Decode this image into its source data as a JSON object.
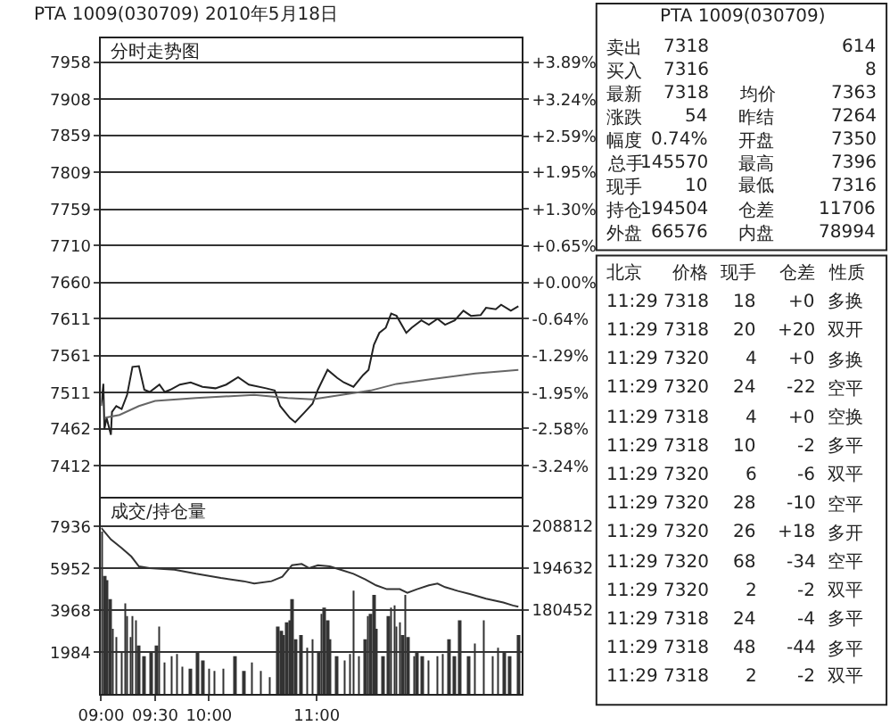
{
  "chart_data": [
    {
      "type": "line",
      "title": "PTA 1009(030709) 2010年5月18日",
      "subtitle": "分时走势图",
      "xlim": [
        9,
        12.9
      ],
      "ylim": [
        7370,
        7990
      ],
      "yticks": [
        7958,
        7908,
        7859,
        7809,
        7759,
        7710,
        7660,
        7611,
        7561,
        7511,
        7462,
        7412
      ],
      "y2lim": [
        -3.79,
        4.31
      ],
      "y2ticks": [
        {
          "value": 3.89,
          "label": "+3.89%"
        },
        {
          "value": 3.24,
          "label": "+3.24%"
        },
        {
          "value": 2.59,
          "label": "+2.59%"
        },
        {
          "value": 1.95,
          "label": "+1.95%"
        },
        {
          "value": 1.3,
          "label": "+1.30%"
        },
        {
          "value": 0.65,
          "label": "+0.65%"
        },
        {
          "value": 0.0,
          "label": "+0.00%"
        },
        {
          "value": -0.64,
          "label": "-0.64%"
        },
        {
          "value": -1.29,
          "label": "-1.29%"
        },
        {
          "value": -1.95,
          "label": "-1.95%"
        },
        {
          "value": -2.58,
          "label": "-2.58%"
        },
        {
          "value": -3.24,
          "label": "-3.24%"
        }
      ],
      "grid": "y",
      "tick_labels": "y",
      "series": [
        {
          "color": "#222222",
          "x": [
            9.0,
            9.02,
            9.03,
            9.05,
            9.09,
            9.1,
            9.14,
            9.19,
            9.24,
            9.29,
            9.35,
            9.4,
            9.45,
            9.54,
            9.59,
            9.64,
            9.73,
            9.83,
            9.94,
            10.06,
            10.16,
            10.27,
            10.37,
            10.53,
            10.61,
            10.66,
            10.75,
            10.8,
            10.89,
            10.96,
            11.01,
            11.1,
            11.19,
            11.25,
            11.34,
            11.43,
            11.48,
            11.53,
            11.58,
            11.64,
            11.69,
            11.74,
            11.83,
            11.88,
            11.97,
            12.04,
            12.12,
            12.19,
            12.28,
            12.36,
            12.43,
            12.52,
            12.57,
            12.66,
            12.71,
            12.8,
            12.87
          ],
          "values": [
            7493,
            7523,
            7462,
            7477,
            7454,
            7485,
            7493,
            7489,
            7508,
            7546,
            7547,
            7515,
            7512,
            7522,
            7512,
            7515,
            7522,
            7525,
            7519,
            7517,
            7522,
            7532,
            7522,
            7517,
            7514,
            7493,
            7477,
            7471,
            7485,
            7496,
            7515,
            7542,
            7531,
            7525,
            7519,
            7535,
            7542,
            7576,
            7592,
            7599,
            7618,
            7615,
            7592,
            7599,
            7609,
            7603,
            7611,
            7603,
            7609,
            7622,
            7615,
            7616,
            7626,
            7624,
            7630,
            7622,
            7628
          ]
        },
        {
          "color": "#666666",
          "x": [
            9.03,
            9.17,
            9.35,
            9.5,
            9.88,
            10.42,
            10.73,
            10.96,
            11.5,
            11.74,
            12.04,
            12.47,
            12.87
          ],
          "values": [
            7477,
            7481,
            7493,
            7500,
            7504,
            7508,
            7504,
            7502,
            7514,
            7523,
            7529,
            7537,
            7542
          ]
        }
      ]
    },
    {
      "type": "bar",
      "title": "成交/持仓量",
      "xlim": [
        9,
        12.9
      ],
      "xticks": [
        {
          "value": 9,
          "label": "09:00"
        },
        {
          "value": 9.5,
          "label": "09:30"
        },
        {
          "value": 10,
          "label": "10:00"
        },
        {
          "value": 11,
          "label": "11:00"
        }
      ],
      "ylim": [
        0,
        9270
      ],
      "yticks": [
        7936,
        5952,
        3968,
        1984
      ],
      "y2lim": [
        152092,
        218148
      ],
      "y2ticks": [
        208812,
        194632,
        180452
      ],
      "grid": "y",
      "series": [
        {
          "type": "bar",
          "color": "#333333",
          "x": [
            9.0,
            9.03,
            9.05,
            9.08,
            9.11,
            9.14,
            9.19,
            9.22,
            9.24,
            9.27,
            9.29,
            9.32,
            9.35,
            9.4,
            9.46,
            9.51,
            9.54,
            9.59,
            9.65,
            9.7,
            9.75,
            9.83,
            9.89,
            9.94,
            10.0,
            10.05,
            10.13,
            10.24,
            10.32,
            10.4,
            10.48,
            10.56,
            10.64,
            10.67,
            10.69,
            10.72,
            10.75,
            10.77,
            10.8,
            10.85,
            10.91,
            10.96,
            11.02,
            11.04,
            11.07,
            11.1,
            11.12,
            11.18,
            11.26,
            11.31,
            11.34,
            11.39,
            11.45,
            11.47,
            11.5,
            11.53,
            11.55,
            11.61,
            11.66,
            11.69,
            11.72,
            11.74,
            11.77,
            11.8,
            11.82,
            11.85,
            11.9,
            11.93,
            11.98,
            12.04,
            12.12,
            12.17,
            12.23,
            12.28,
            12.33,
            12.41,
            12.47,
            12.55,
            12.63,
            12.68,
            12.74,
            12.79,
            12.87
          ],
          "values": [
            7700,
            5600,
            5400,
            4500,
            3100,
            2700,
            2000,
            4300,
            3700,
            2700,
            3700,
            3500,
            2300,
            1800,
            2000,
            2300,
            3200,
            1500,
            1800,
            1900,
            1300,
            1200,
            2000,
            1600,
            1200,
            1100,
            1200,
            1800,
            1100,
            1500,
            1100,
            800,
            3200,
            3000,
            2800,
            3400,
            3500,
            4500,
            2600,
            2800,
            2200,
            2600,
            2000,
            3800,
            4100,
            3500,
            2600,
            1800,
            1600,
            1900,
            4900,
            1800,
            2600,
            3700,
            3800,
            4700,
            3100,
            1800,
            3700,
            4100,
            4200,
            3200,
            3400,
            2800,
            4700,
            2700,
            1800,
            2000,
            1800,
            1600,
            1800,
            1900,
            2600,
            1800,
            3500,
            1800,
            2400,
            3500,
            1800,
            2200,
            2000,
            1800,
            2800
          ]
        },
        {
          "type": "line",
          "axis": "y2",
          "color": "#333333",
          "x": [
            9.0,
            9.09,
            9.19,
            9.28,
            9.35,
            9.45,
            9.68,
            9.88,
            10.11,
            10.32,
            10.42,
            10.58,
            10.68,
            10.77,
            10.86,
            10.93,
            11.01,
            11.12,
            11.22,
            11.34,
            11.45,
            11.55,
            11.65,
            11.77,
            11.84,
            11.93,
            12.04,
            12.12,
            12.19,
            12.31,
            12.42,
            12.57,
            12.73,
            12.82,
            12.87
          ],
          "values": [
            208200,
            204300,
            201400,
            198500,
            195200,
            194600,
            194100,
            192700,
            191300,
            190200,
            189400,
            190200,
            191700,
            195600,
            196000,
            194600,
            195600,
            195200,
            194100,
            192700,
            190800,
            188800,
            187500,
            187500,
            186300,
            187500,
            188800,
            189400,
            188200,
            186900,
            185900,
            184300,
            183000,
            182000,
            181600
          ]
        }
      ]
    },
    {
      "type": "other",
      "title": "PTA 1009(030709)",
      "cell_labels": [
        [
          "卖出",
          "7318",
          null,
          "614"
        ],
        [
          "买入",
          "7316",
          null,
          "8"
        ],
        [
          "最新",
          "7318",
          "均价",
          "7363"
        ],
        [
          "涨跌",
          "54",
          "昨结",
          "7264"
        ],
        [
          "幅度",
          "0.74%",
          "开盘",
          "7350"
        ],
        [
          "总手",
          "145570",
          "最高",
          "7396"
        ],
        [
          "现手",
          "10",
          "最低",
          "7316"
        ],
        [
          "持仓",
          "194504",
          "仓差",
          "11706"
        ],
        [
          "外盘",
          "66576",
          "内盘",
          "78994"
        ]
      ]
    },
    {
      "type": "other",
      "categories": [
        "北京",
        "价格",
        "现手",
        "仓差",
        "性质"
      ],
      "cell_labels": [
        [
          "11:29",
          "7318",
          "18",
          "+0",
          "多换"
        ],
        [
          "11:29",
          "7318",
          "20",
          "+20",
          "双开"
        ],
        [
          "11:29",
          "7320",
          "4",
          "+0",
          "多换"
        ],
        [
          "11:29",
          "7320",
          "24",
          "-22",
          "空平"
        ],
        [
          "11:29",
          "7318",
          "4",
          "+0",
          "空换"
        ],
        [
          "11:29",
          "7318",
          "10",
          "-2",
          "多平"
        ],
        [
          "11:29",
          "7320",
          "6",
          "-6",
          "双平"
        ],
        [
          "11:29",
          "7320",
          "28",
          "-10",
          "空平"
        ],
        [
          "11:29",
          "7320",
          "26",
          "+18",
          "多开"
        ],
        [
          "11:29",
          "7320",
          "68",
          "-34",
          "空平"
        ],
        [
          "11:29",
          "7320",
          "2",
          "-2",
          "双平"
        ],
        [
          "11:29",
          "7318",
          "24",
          "-4",
          "多平"
        ],
        [
          "11:29",
          "7318",
          "48",
          "-44",
          "多平"
        ],
        [
          "11:29",
          "7318",
          "2",
          "-2",
          "双平"
        ]
      ]
    }
  ]
}
